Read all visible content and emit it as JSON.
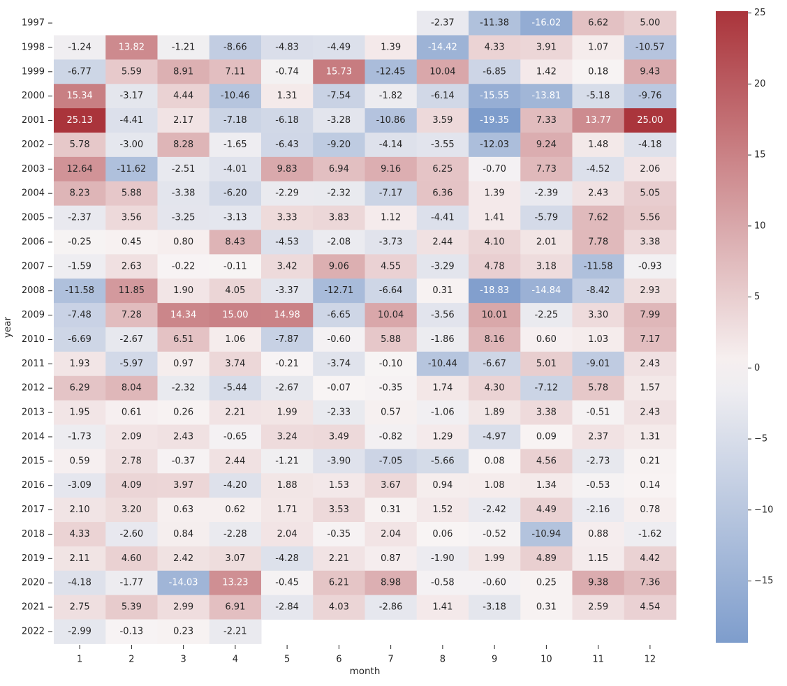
{
  "chart_data": {
    "type": "heatmap",
    "title": "",
    "xlabel": "month",
    "ylabel": "year",
    "x": [
      "1",
      "2",
      "3",
      "4",
      "5",
      "6",
      "7",
      "8",
      "9",
      "10",
      "11",
      "12"
    ],
    "y": [
      "1997",
      "1998",
      "1999",
      "2000",
      "2001",
      "2002",
      "2003",
      "2004",
      "2005",
      "2006",
      "2007",
      "2008",
      "2009",
      "2010",
      "2011",
      "2012",
      "2013",
      "2014",
      "2015",
      "2016",
      "2017",
      "2018",
      "2019",
      "2020",
      "2021",
      "2022"
    ],
    "values": [
      [
        null,
        null,
        null,
        null,
        null,
        null,
        null,
        -2.37,
        -11.38,
        -16.02,
        6.62,
        5.0
      ],
      [
        -1.24,
        13.82,
        -1.21,
        -8.66,
        -4.83,
        -4.49,
        1.39,
        -14.42,
        4.33,
        3.91,
        1.07,
        -10.57
      ],
      [
        -6.77,
        5.59,
        8.91,
        7.11,
        -0.74,
        15.73,
        -12.45,
        10.04,
        -6.85,
        1.42,
        0.18,
        9.43
      ],
      [
        15.34,
        -3.17,
        4.44,
        -10.46,
        1.31,
        -7.54,
        -1.82,
        -6.14,
        -15.55,
        -13.81,
        -5.18,
        -9.76
      ],
      [
        25.13,
        -4.41,
        2.17,
        -7.18,
        -6.18,
        -3.28,
        -10.86,
        3.59,
        -19.35,
        7.33,
        13.77,
        25.0
      ],
      [
        5.78,
        -3.0,
        8.28,
        -1.65,
        -6.43,
        -9.2,
        -4.14,
        -3.55,
        -12.03,
        9.24,
        1.48,
        -4.18
      ],
      [
        12.64,
        -11.62,
        -2.51,
        -4.01,
        9.83,
        6.94,
        9.16,
        6.25,
        -0.7,
        7.73,
        -4.52,
        2.06
      ],
      [
        8.23,
        5.88,
        -3.38,
        -6.2,
        -2.29,
        -2.32,
        -7.17,
        6.36,
        1.39,
        -2.39,
        2.43,
        5.05
      ],
      [
        -2.37,
        3.56,
        -3.25,
        -3.13,
        3.33,
        3.83,
        1.12,
        -4.41,
        1.41,
        -5.79,
        7.62,
        5.56
      ],
      [
        -0.25,
        0.45,
        0.8,
        8.43,
        -4.53,
        -2.08,
        -3.73,
        2.44,
        4.1,
        2.01,
        7.78,
        3.38
      ],
      [
        -1.59,
        2.63,
        -0.22,
        -0.11,
        3.42,
        9.06,
        4.55,
        -3.29,
        4.78,
        3.18,
        -11.58,
        -0.93
      ],
      [
        -11.58,
        11.85,
        1.9,
        4.05,
        -3.37,
        -12.71,
        -6.64,
        0.31,
        -18.83,
        -14.84,
        -8.42,
        2.93
      ],
      [
        -7.48,
        7.28,
        14.34,
        15.0,
        14.98,
        -6.65,
        10.04,
        -3.56,
        10.01,
        -2.25,
        3.3,
        7.99
      ],
      [
        -6.69,
        -2.67,
        6.51,
        1.06,
        -7.87,
        -0.6,
        5.88,
        -1.86,
        8.16,
        0.6,
        1.03,
        7.17
      ],
      [
        1.93,
        -5.97,
        0.97,
        3.74,
        -0.21,
        -3.74,
        -0.1,
        -10.44,
        -6.67,
        5.01,
        -9.01,
        2.43
      ],
      [
        6.29,
        8.04,
        -2.32,
        -5.44,
        -2.67,
        -0.07,
        -0.35,
        1.74,
        4.3,
        -7.12,
        5.78,
        1.57
      ],
      [
        1.95,
        0.61,
        0.26,
        2.21,
        1.99,
        -2.33,
        0.57,
        -1.06,
        1.89,
        3.38,
        -0.51,
        2.43
      ],
      [
        -1.73,
        2.09,
        2.43,
        -0.65,
        3.24,
        3.49,
        -0.82,
        1.29,
        -4.97,
        0.09,
        2.37,
        1.31
      ],
      [
        0.59,
        2.78,
        -0.37,
        2.44,
        -1.21,
        -3.9,
        -7.05,
        -5.66,
        0.08,
        4.56,
        -2.73,
        0.21
      ],
      [
        -3.09,
        4.09,
        3.97,
        -4.2,
        1.88,
        1.53,
        3.67,
        0.94,
        1.08,
        1.34,
        -0.53,
        0.14
      ],
      [
        2.1,
        3.2,
        0.63,
        0.62,
        1.71,
        3.53,
        0.31,
        1.52,
        -2.42,
        4.49,
        -2.16,
        0.78
      ],
      [
        4.33,
        -2.6,
        0.84,
        -2.28,
        2.04,
        -0.35,
        2.04,
        0.06,
        -0.52,
        -10.94,
        0.88,
        -1.62
      ],
      [
        2.11,
        4.6,
        2.42,
        3.07,
        -4.28,
        2.21,
        0.87,
        -1.9,
        1.99,
        4.89,
        1.15,
        4.42
      ],
      [
        -4.18,
        -1.77,
        -14.03,
        13.23,
        -0.45,
        6.21,
        8.98,
        -0.58,
        -0.6,
        0.25,
        9.38,
        7.36
      ],
      [
        2.75,
        5.39,
        2.99,
        6.91,
        -2.84,
        4.03,
        -2.86,
        1.41,
        -3.18,
        0.31,
        2.59,
        4.54
      ],
      [
        -2.99,
        -0.13,
        0.23,
        -2.21,
        null,
        null,
        null,
        null,
        null,
        null,
        null,
        null
      ]
    ],
    "annotation_format": "0.00",
    "colormap": "vlag",
    "vmin": -19.35,
    "vmax": 25.13,
    "center": 0,
    "colorbar": {
      "ticks": [
        25,
        20,
        15,
        10,
        5,
        0,
        -5,
        -10,
        -15
      ],
      "tick_labels": [
        "25",
        "20",
        "15",
        "10",
        "5",
        "0",
        "−5",
        "−10",
        "−15"
      ],
      "placement": "right"
    },
    "colors": {
      "low": "#5a83c0",
      "mid": "#f8f4f4",
      "high": "#aa343b",
      "text_dark": "#262626",
      "text_light": "#ffffff"
    }
  }
}
